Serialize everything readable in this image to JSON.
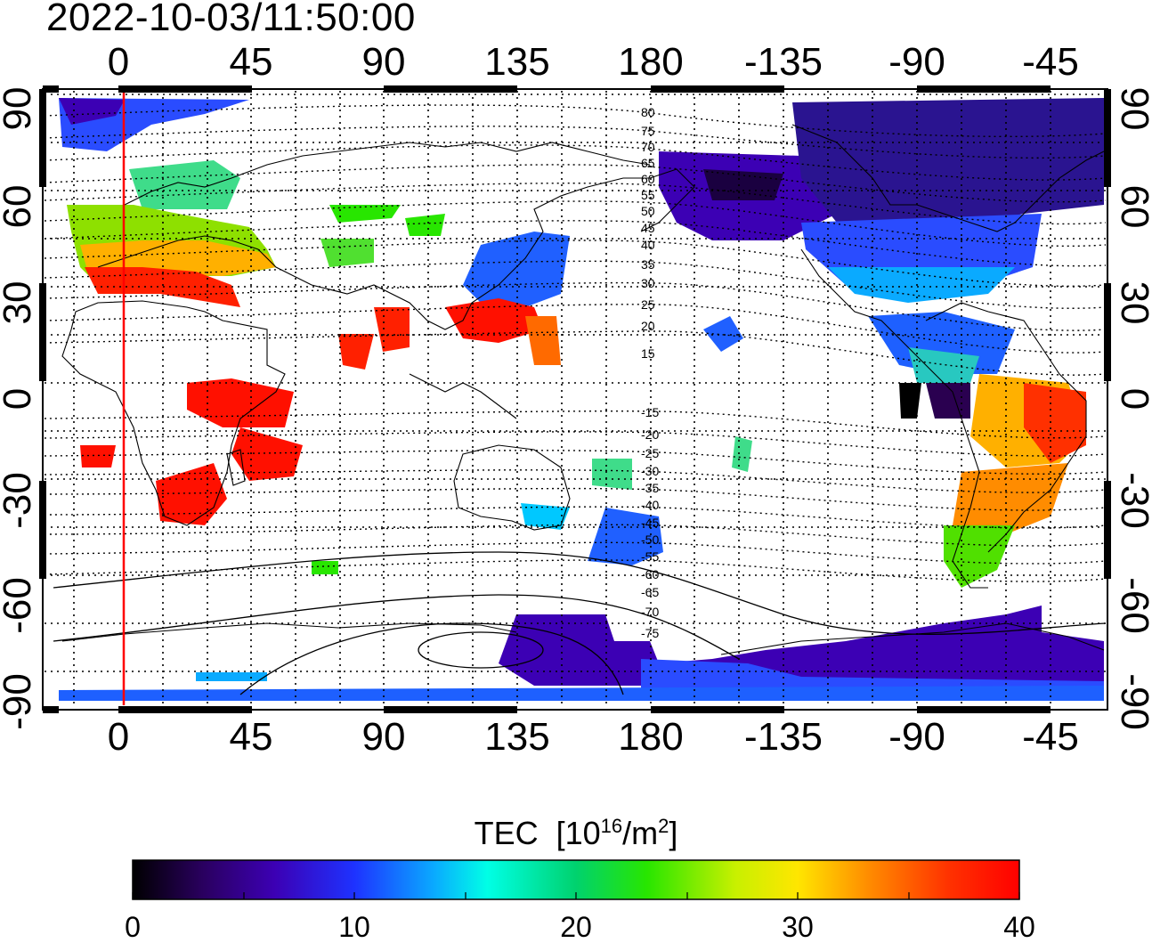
{
  "timestamp": "2022-10-03/11:50:00",
  "map": {
    "top_axis_labels": [
      "0",
      "45",
      "90",
      "135",
      "180",
      "-135",
      "-90",
      "-45"
    ],
    "bottom_axis_labels": [
      "0",
      "45",
      "90",
      "135",
      "180",
      "-135",
      "-90",
      "-45"
    ],
    "left_axis_labels": [
      "90",
      "60",
      "30",
      "0",
      "-30",
      "-60",
      "-90"
    ],
    "right_axis_labels": [
      "90",
      "60",
      "30",
      "0",
      "-30",
      "-60",
      "-90"
    ],
    "contour_labels": [
      "80",
      "75",
      "70",
      "65",
      "60",
      "55",
      "50",
      "45",
      "40",
      "35",
      "30",
      "25",
      "20",
      "15",
      "-15",
      "-20",
      "-25",
      "-30",
      "-35",
      "-40",
      "-45",
      "-50",
      "-55",
      "-60",
      "-65",
      "-70",
      "-75"
    ],
    "terminator_color": "#ff0000"
  },
  "colorbar": {
    "title": "TEC",
    "unit_prefix": "[10",
    "unit_exp": "16",
    "unit_mid": "/m",
    "unit_exp2": "2",
    "unit_suffix": "]",
    "labels": [
      "0",
      "10",
      "20",
      "30",
      "40"
    ],
    "range": [
      0,
      40
    ],
    "colors": [
      "#000000",
      "#2a0060",
      "#3c00b4",
      "#1e32ff",
      "#0aaaff",
      "#00ffe6",
      "#00d26e",
      "#28e600",
      "#c8f000",
      "#ffe600",
      "#ff8c00",
      "#ff3200",
      "#ff0000"
    ]
  }
}
